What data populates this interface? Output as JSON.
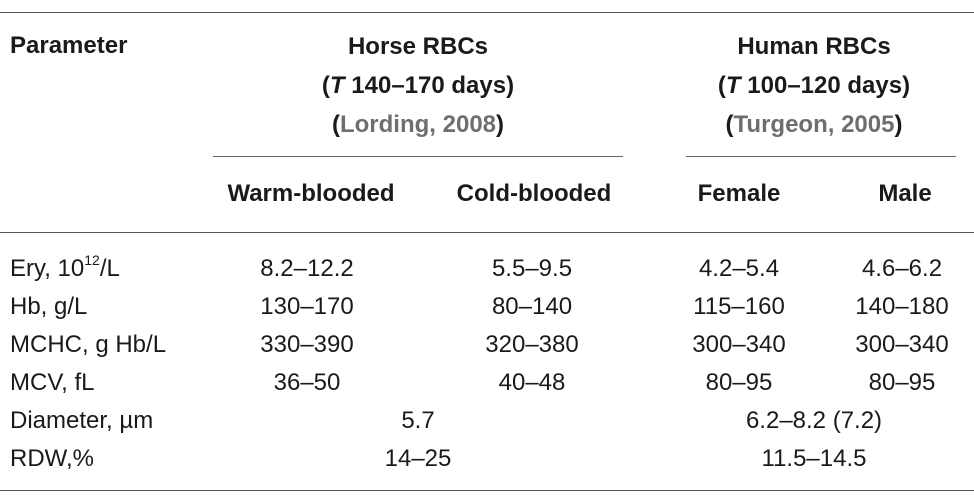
{
  "header": {
    "parameter": "Parameter",
    "horse": {
      "title": "Horse RBCs",
      "lifespan_t": "T",
      "lifespan_rest": " 140–170 days)",
      "ref_name": "Lording, 2008",
      "sub_warm": "Warm-blooded",
      "sub_cold": "Cold-blooded"
    },
    "human": {
      "title": "Human RBCs",
      "lifespan_t": "T",
      "lifespan_rest": " 100–120 days)",
      "ref_name": "Turgeon, 2005",
      "sub_female": "Female",
      "sub_male": "Male"
    }
  },
  "rows": [
    {
      "label_pre": "Ery, 10",
      "label_sup": "12",
      "label_post": "/L",
      "warm": "8.2–12.2",
      "cold": "5.5–9.5",
      "female": "4.2–5.4",
      "male": "4.6–6.2"
    },
    {
      "label": "Hb, g/L",
      "warm": "130–170",
      "cold": "80–140",
      "female": "115–160",
      "male": "140–180"
    },
    {
      "label": "MCHC, g Hb/L",
      "warm": "330–390",
      "cold": "320–380",
      "female": "300–340",
      "male": "300–340"
    },
    {
      "label": "MCV, fL",
      "warm": "36–50",
      "cold": "40–48",
      "female": "80–95",
      "male": "80–95"
    },
    {
      "label": "Diameter, µm",
      "horse_merged": "5.7",
      "human_merged": "6.2–8.2 (7.2)"
    },
    {
      "label": "RDW,%",
      "horse_merged": "14–25",
      "human_merged": "11.5–14.5"
    }
  ]
}
